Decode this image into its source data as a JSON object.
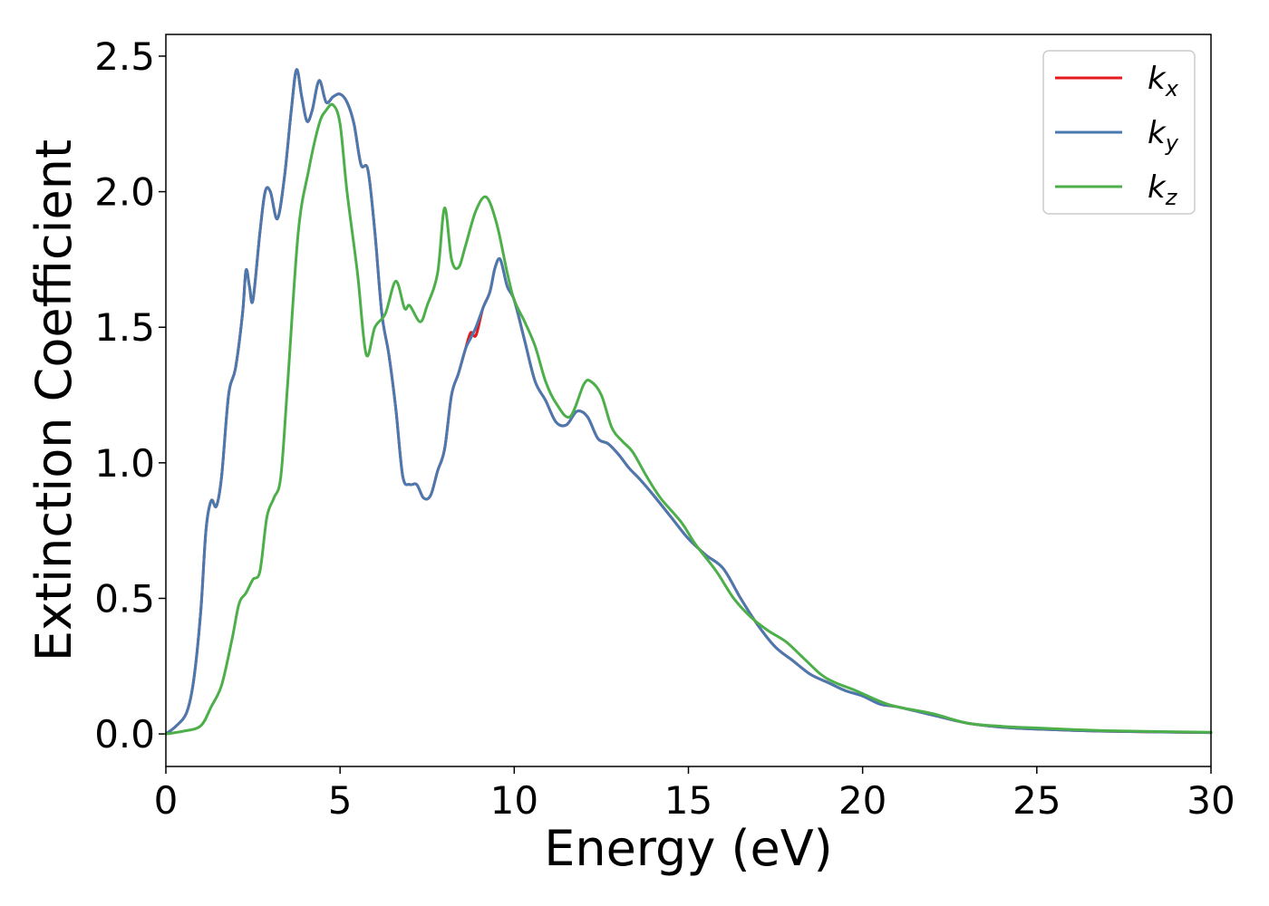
{
  "chart_data": {
    "type": "line",
    "title": "",
    "xlabel": "Energy (eV)",
    "ylabel": "Extinction Coefficient",
    "xlim": [
      0,
      30
    ],
    "ylim": [
      -0.12,
      2.58
    ],
    "xticks": [
      0,
      5,
      10,
      15,
      20,
      25,
      30
    ],
    "yticks": [
      0.0,
      0.5,
      1.0,
      1.5,
      2.0,
      2.5
    ],
    "xtick_labels": [
      "0",
      "5",
      "10",
      "15",
      "20",
      "25",
      "30"
    ],
    "ytick_labels": [
      "0.0",
      "0.5",
      "1.0",
      "1.5",
      "2.0",
      "2.5"
    ],
    "grid": false,
    "legend_position": "top-right",
    "series": [
      {
        "name": "k_x",
        "legend_base": "k",
        "legend_sub": "x",
        "color": "#e41a1c",
        "x": [
          0,
          0.3,
          0.6,
          0.8,
          1.0,
          1.15,
          1.3,
          1.45,
          1.6,
          1.8,
          2.0,
          2.2,
          2.3,
          2.4,
          2.5,
          2.7,
          2.85,
          3.0,
          3.2,
          3.4,
          3.6,
          3.75,
          3.9,
          4.05,
          4.2,
          4.4,
          4.6,
          4.8,
          5.0,
          5.2,
          5.4,
          5.6,
          5.8,
          6.0,
          6.2,
          6.4,
          6.6,
          6.8,
          7.0,
          7.2,
          7.4,
          7.6,
          7.8,
          8.0,
          8.2,
          8.4,
          8.6,
          8.75,
          8.9,
          9.1,
          9.3,
          9.45,
          9.6,
          9.8,
          10.0,
          10.3,
          10.6,
          10.9,
          11.2,
          11.5,
          11.8,
          12.1,
          12.4,
          12.7,
          13.0,
          13.3,
          13.6,
          14.0,
          14.5,
          15.0,
          15.5,
          16.0,
          16.5,
          17.0,
          17.5,
          18.0,
          18.5,
          19.0,
          19.5,
          20.0,
          20.5,
          21.0,
          22.0,
          23.0,
          24.0,
          25.0,
          27.0,
          30.0
        ],
        "values": [
          0.0,
          0.03,
          0.08,
          0.2,
          0.45,
          0.75,
          0.86,
          0.84,
          0.95,
          1.25,
          1.35,
          1.55,
          1.71,
          1.65,
          1.6,
          1.85,
          2.0,
          2.0,
          1.9,
          2.05,
          2.3,
          2.45,
          2.35,
          2.26,
          2.3,
          2.41,
          2.33,
          2.35,
          2.36,
          2.33,
          2.25,
          2.1,
          2.08,
          1.85,
          1.55,
          1.4,
          1.2,
          0.95,
          0.92,
          0.92,
          0.87,
          0.88,
          0.97,
          1.05,
          1.25,
          1.33,
          1.42,
          1.48,
          1.47,
          1.57,
          1.63,
          1.72,
          1.75,
          1.65,
          1.6,
          1.45,
          1.3,
          1.23,
          1.15,
          1.14,
          1.19,
          1.17,
          1.09,
          1.07,
          1.03,
          0.98,
          0.94,
          0.88,
          0.8,
          0.72,
          0.66,
          0.61,
          0.5,
          0.4,
          0.32,
          0.27,
          0.22,
          0.19,
          0.16,
          0.14,
          0.11,
          0.1,
          0.07,
          0.04,
          0.025,
          0.018,
          0.01,
          0.005
        ]
      },
      {
        "name": "k_y",
        "legend_base": "k",
        "legend_sub": "y",
        "color": "#4a79b0",
        "x": [
          0,
          0.3,
          0.6,
          0.8,
          1.0,
          1.15,
          1.3,
          1.45,
          1.6,
          1.8,
          2.0,
          2.2,
          2.3,
          2.4,
          2.5,
          2.7,
          2.85,
          3.0,
          3.2,
          3.4,
          3.6,
          3.75,
          3.9,
          4.05,
          4.2,
          4.4,
          4.6,
          4.8,
          5.0,
          5.2,
          5.4,
          5.6,
          5.8,
          6.0,
          6.2,
          6.4,
          6.6,
          6.8,
          7.0,
          7.2,
          7.4,
          7.6,
          7.8,
          8.0,
          8.2,
          8.4,
          8.6,
          8.75,
          8.9,
          9.1,
          9.3,
          9.45,
          9.6,
          9.8,
          10.0,
          10.3,
          10.6,
          10.9,
          11.2,
          11.5,
          11.8,
          12.1,
          12.4,
          12.7,
          13.0,
          13.3,
          13.6,
          14.0,
          14.5,
          15.0,
          15.5,
          16.0,
          16.5,
          17.0,
          17.5,
          18.0,
          18.5,
          19.0,
          19.5,
          20.0,
          20.5,
          21.0,
          22.0,
          23.0,
          24.0,
          25.0,
          27.0,
          30.0
        ],
        "values": [
          0.0,
          0.03,
          0.08,
          0.2,
          0.45,
          0.75,
          0.86,
          0.84,
          0.95,
          1.25,
          1.35,
          1.55,
          1.71,
          1.65,
          1.6,
          1.85,
          2.0,
          2.0,
          1.9,
          2.05,
          2.3,
          2.45,
          2.35,
          2.26,
          2.3,
          2.41,
          2.33,
          2.35,
          2.36,
          2.33,
          2.25,
          2.1,
          2.08,
          1.85,
          1.55,
          1.4,
          1.2,
          0.95,
          0.92,
          0.92,
          0.87,
          0.88,
          0.97,
          1.05,
          1.25,
          1.33,
          1.42,
          1.46,
          1.5,
          1.57,
          1.63,
          1.72,
          1.75,
          1.65,
          1.6,
          1.45,
          1.3,
          1.23,
          1.15,
          1.14,
          1.19,
          1.17,
          1.09,
          1.07,
          1.03,
          0.98,
          0.94,
          0.88,
          0.8,
          0.72,
          0.66,
          0.61,
          0.5,
          0.4,
          0.32,
          0.27,
          0.22,
          0.19,
          0.16,
          0.14,
          0.11,
          0.1,
          0.07,
          0.04,
          0.025,
          0.018,
          0.01,
          0.005
        ]
      },
      {
        "name": "k_z",
        "legend_base": "k",
        "legend_sub": "z",
        "color": "#4daf4a",
        "x": [
          0,
          0.5,
          1.0,
          1.3,
          1.6,
          1.9,
          2.1,
          2.3,
          2.5,
          2.7,
          2.9,
          3.1,
          3.3,
          3.5,
          3.8,
          4.1,
          4.4,
          4.6,
          4.8,
          5.0,
          5.2,
          5.5,
          5.75,
          6.0,
          6.3,
          6.6,
          6.85,
          7.0,
          7.3,
          7.5,
          7.8,
          8.0,
          8.2,
          8.4,
          8.6,
          8.9,
          9.2,
          9.5,
          9.8,
          10.0,
          10.3,
          10.6,
          10.9,
          11.2,
          11.6,
          12.0,
          12.2,
          12.5,
          12.8,
          13.1,
          13.4,
          13.8,
          14.2,
          14.8,
          15.2,
          15.8,
          16.3,
          16.8,
          17.3,
          17.8,
          18.3,
          18.8,
          19.2,
          19.8,
          20.5,
          21.0,
          22.0,
          23.0,
          24.0,
          25.0,
          27.0,
          30.0
        ],
        "values": [
          0.0,
          0.01,
          0.03,
          0.1,
          0.18,
          0.35,
          0.48,
          0.52,
          0.57,
          0.6,
          0.8,
          0.87,
          0.95,
          1.3,
          1.85,
          2.08,
          2.25,
          2.3,
          2.32,
          2.25,
          2.0,
          1.7,
          1.4,
          1.5,
          1.55,
          1.67,
          1.57,
          1.58,
          1.52,
          1.58,
          1.7,
          1.94,
          1.75,
          1.72,
          1.8,
          1.93,
          1.98,
          1.88,
          1.7,
          1.6,
          1.52,
          1.43,
          1.3,
          1.22,
          1.17,
          1.29,
          1.3,
          1.25,
          1.13,
          1.08,
          1.04,
          0.95,
          0.87,
          0.78,
          0.7,
          0.6,
          0.5,
          0.43,
          0.38,
          0.34,
          0.28,
          0.22,
          0.19,
          0.16,
          0.12,
          0.1,
          0.075,
          0.04,
          0.028,
          0.022,
          0.012,
          0.006
        ]
      }
    ]
  }
}
